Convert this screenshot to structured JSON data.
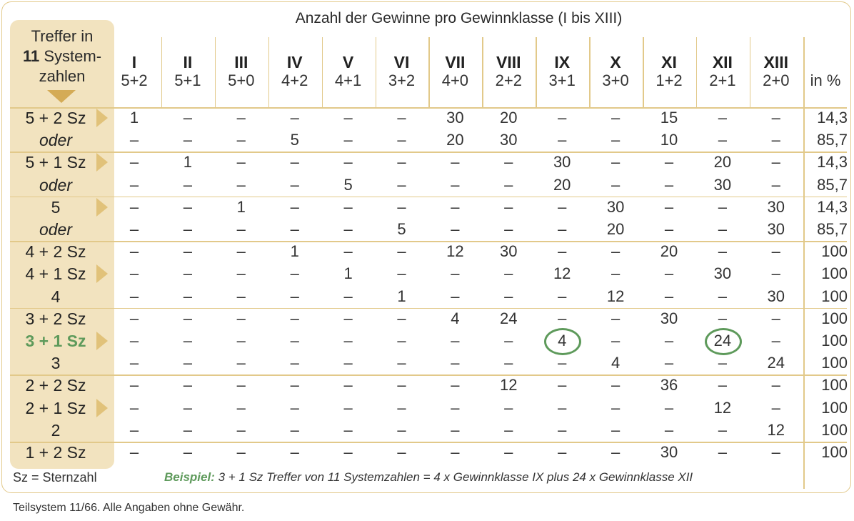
{
  "title": "Anzahl der Gewinne pro Gewinnklasse (I bis XIII)",
  "treffer_header": [
    "Treffer in",
    "11",
    "Systemzahlen"
  ],
  "treffer_header_line1": "Treffer in",
  "treffer_header_num": "11",
  "treffer_header_rest": "System-",
  "treffer_header_line3": "zahlen",
  "columns": [
    {
      "roman": "I",
      "combo": "5+2"
    },
    {
      "roman": "II",
      "combo": "5+1"
    },
    {
      "roman": "III",
      "combo": "5+0"
    },
    {
      "roman": "IV",
      "combo": "4+2"
    },
    {
      "roman": "V",
      "combo": "4+1"
    },
    {
      "roman": "VI",
      "combo": "3+2"
    },
    {
      "roman": "VII",
      "combo": "4+0"
    },
    {
      "roman": "VIII",
      "combo": "2+2"
    },
    {
      "roman": "IX",
      "combo": "3+1"
    },
    {
      "roman": "X",
      "combo": "3+0"
    },
    {
      "roman": "XI",
      "combo": "1+2"
    },
    {
      "roman": "XII",
      "combo": "2+1"
    },
    {
      "roman": "XIII",
      "combo": "2+0"
    }
  ],
  "pct_header": "in %",
  "rows": [
    {
      "label": "5 + 2 Sz",
      "arrow": true,
      "cells": [
        "1",
        "–",
        "–",
        "–",
        "–",
        "–",
        "30",
        "20",
        "–",
        "–",
        "15",
        "–",
        "–"
      ],
      "pct": "14,3"
    },
    {
      "label": "oder",
      "oder": true,
      "cells": [
        "–",
        "–",
        "–",
        "5",
        "–",
        "–",
        "20",
        "30",
        "–",
        "–",
        "10",
        "–",
        "–"
      ],
      "pct": "85,7"
    },
    {
      "label": "5 + 1  Sz",
      "arrow": true,
      "cells": [
        "–",
        "1",
        "–",
        "–",
        "–",
        "–",
        "–",
        "–",
        "30",
        "–",
        "–",
        "20",
        "–"
      ],
      "pct": "14,3"
    },
    {
      "label": "oder",
      "oder": true,
      "cells": [
        "–",
        "–",
        "–",
        "–",
        "5",
        "–",
        "–",
        "–",
        "20",
        "–",
        "–",
        "30",
        "–"
      ],
      "pct": "85,7"
    },
    {
      "label": "5",
      "arrow": true,
      "cells": [
        "–",
        "–",
        "1",
        "–",
        "–",
        "–",
        "–",
        "–",
        "–",
        "30",
        "–",
        "–",
        "30"
      ],
      "pct": "14,3"
    },
    {
      "label": "oder",
      "oder": true,
      "cells": [
        "–",
        "–",
        "–",
        "–",
        "–",
        "5",
        "–",
        "–",
        "–",
        "20",
        "–",
        "–",
        "30"
      ],
      "pct": "85,7"
    },
    {
      "label": "4 + 2 Sz",
      "cells": [
        "–",
        "–",
        "–",
        "1",
        "–",
        "–",
        "12",
        "30",
        "–",
        "–",
        "20",
        "–",
        "–"
      ],
      "pct": "100"
    },
    {
      "label": "4 + 1  Sz",
      "arrow": true,
      "cells": [
        "–",
        "–",
        "–",
        "–",
        "1",
        "–",
        "–",
        "–",
        "12",
        "–",
        "–",
        "30",
        "–"
      ],
      "pct": "100"
    },
    {
      "label": "4",
      "cells": [
        "–",
        "–",
        "–",
        "–",
        "–",
        "1",
        "–",
        "–",
        "–",
        "12",
        "–",
        "–",
        "30"
      ],
      "pct": "100"
    },
    {
      "label": "3 + 2 Sz",
      "cells": [
        "–",
        "–",
        "–",
        "–",
        "–",
        "–",
        "4",
        "24",
        "–",
        "–",
        "30",
        "–",
        "–"
      ],
      "pct": "100"
    },
    {
      "label": "3 + 1  Sz",
      "arrow": true,
      "highlight": true,
      "cells": [
        "–",
        "–",
        "–",
        "–",
        "–",
        "–",
        "–",
        "–",
        "4",
        "–",
        "–",
        "24",
        "–"
      ],
      "pct": "100"
    },
    {
      "label": "3",
      "cells": [
        "–",
        "–",
        "–",
        "–",
        "–",
        "–",
        "–",
        "–",
        "–",
        "4",
        "–",
        "–",
        "24"
      ],
      "pct": "100"
    },
    {
      "label": "2 + 2 Sz",
      "cells": [
        "–",
        "–",
        "–",
        "–",
        "–",
        "–",
        "–",
        "12",
        "–",
        "–",
        "36",
        "–",
        "–"
      ],
      "pct": "100"
    },
    {
      "label": "2 + 1  Sz",
      "arrow": true,
      "cells": [
        "–",
        "–",
        "–",
        "–",
        "–",
        "–",
        "–",
        "–",
        "–",
        "–",
        "–",
        "12",
        "–"
      ],
      "pct": "100"
    },
    {
      "label": "2",
      "cells": [
        "–",
        "–",
        "–",
        "–",
        "–",
        "–",
        "–",
        "–",
        "–",
        "–",
        "–",
        "–",
        "12"
      ],
      "pct": "100"
    },
    {
      "label": "1 + 2 Sz",
      "cells": [
        "–",
        "–",
        "–",
        "–",
        "–",
        "–",
        "–",
        "–",
        "–",
        "–",
        "30",
        "–",
        "–"
      ],
      "pct": "100"
    }
  ],
  "sz_legend": "Sz = Sternzahl",
  "example_label": "Beispiel:",
  "example_text": " 3 + 1 Sz Treffer von 11 Systemzahlen = 4 x Gewinnklasse IX plus 24 x Gewinnklasse XII",
  "footnote": "Teilsystem 11/66. Alle Angaben ohne Gewähr.",
  "colors": {
    "gold": "#e2c98a",
    "band": "#f2e3bf",
    "green": "#5e9a5b"
  }
}
